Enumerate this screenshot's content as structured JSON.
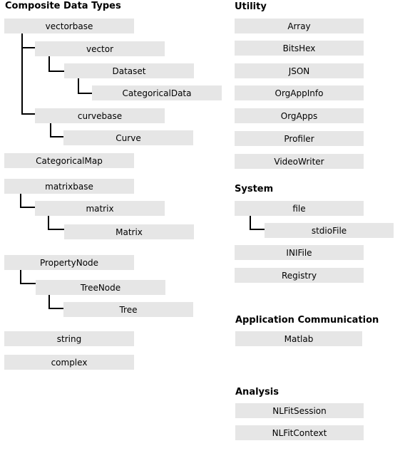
{
  "colors": {
    "box_fill": "#e6e6e6",
    "connector": "#000000",
    "background": "#ffffff"
  },
  "sections": {
    "composite": {
      "title": "Composite Data Types",
      "items": {
        "vectorbase": "vectorbase",
        "vector": "vector",
        "dataset": "Dataset",
        "categoricaldata": "CategoricalData",
        "curvebase": "curvebase",
        "curve": "Curve",
        "categoricalmap": "CategoricalMap",
        "matrixbase": "matrixbase",
        "matrix_lower": "matrix",
        "matrix_upper": "Matrix",
        "propertynode": "PropertyNode",
        "treenode": "TreeNode",
        "tree": "Tree",
        "string": "string",
        "complex": "complex"
      }
    },
    "utility": {
      "title": "Utility",
      "items": {
        "array": "Array",
        "bitshex": "BitsHex",
        "json": "JSON",
        "orgappinfo": "OrgAppInfo",
        "orgapps": "OrgApps",
        "profiler": "Profiler",
        "videowriter": "VideoWriter"
      }
    },
    "system": {
      "title": "System",
      "items": {
        "file": "file",
        "stdiofile": "stdioFile",
        "inifile": "INIFile",
        "registry": "Registry"
      }
    },
    "appcomm": {
      "title": "Application Communication",
      "items": {
        "matlab": "Matlab"
      }
    },
    "analysis": {
      "title": "Analysis",
      "items": {
        "nlfitsession": "NLFitSession",
        "nlfitcontext": "NLFitContext"
      }
    }
  }
}
